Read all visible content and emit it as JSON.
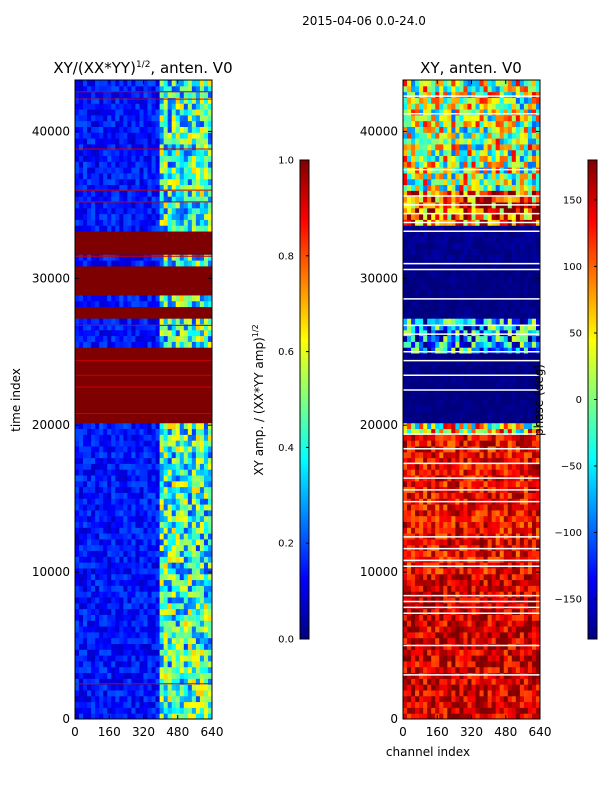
{
  "figure": {
    "suptitle": "2015-04-06 0.0-24.0"
  },
  "colors": {
    "jet": [
      "#00007f",
      "#0000ff",
      "#007fff",
      "#00ffff",
      "#7fff7f",
      "#ffff00",
      "#ff7f00",
      "#ff0000",
      "#7f0000"
    ],
    "line_white": "#ffffff",
    "line_red": "#cc0000"
  },
  "chart_data": [
    {
      "type": "heatmap",
      "title": "XY/(XX*YY)",
      "title_superscript": "1/2",
      "title_suffix": ", anten. V0",
      "xlabel": "",
      "ylabel": "time index",
      "xlim": [
        0,
        640
      ],
      "ylim": [
        0,
        43500
      ],
      "xticks": [
        0,
        160,
        320,
        480,
        640
      ],
      "yticks": [
        0,
        10000,
        20000,
        30000,
        40000
      ],
      "xtick_labels": [
        "0",
        "160",
        "320",
        "480",
        "640"
      ],
      "ytick_labels": [
        "0",
        "10000",
        "20000",
        "30000",
        "40000"
      ],
      "base_value": 0.12,
      "active_channel_band": [
        400,
        640
      ],
      "saturated_ranges": [
        [
          20000,
          25200
        ],
        [
          27200,
          28200
        ],
        [
          29000,
          31000
        ],
        [
          31800,
          33300
        ]
      ],
      "flag_lines": [
        2400,
        20800,
        22600,
        23400,
        24400,
        26800,
        31500,
        35200,
        36000,
        38800,
        42200,
        42700
      ],
      "colorbar": {
        "label": "XY amp. / (XX*YY amp)",
        "label_superscript": "1/2",
        "vmin": 0.0,
        "vmax": 1.0,
        "ticks": [
          0.0,
          0.2,
          0.4,
          0.6,
          0.8,
          1.0
        ],
        "tick_labels": [
          "0.0",
          "0.2",
          "0.4",
          "0.6",
          "0.8",
          "1.0"
        ]
      }
    },
    {
      "type": "heatmap",
      "title": "XY, anten. V0",
      "xlabel": "channel index",
      "ylabel": "",
      "xlim": [
        0,
        640
      ],
      "ylim": [
        0,
        43500
      ],
      "xticks": [
        0,
        160,
        320,
        480,
        640
      ],
      "yticks": [
        0,
        10000,
        20000,
        30000,
        40000
      ],
      "xtick_labels": [
        "0",
        "160",
        "320",
        "480",
        "640"
      ],
      "ytick_labels": [
        "0",
        "10000",
        "20000",
        "30000",
        "40000"
      ],
      "phase_regions": [
        {
          "range": [
            0,
            10000
          ],
          "value": 150
        },
        {
          "range": [
            10000,
            19500
          ],
          "value": 135
        },
        {
          "range": [
            19500,
            20000
          ],
          "value": 40
        },
        {
          "range": [
            20000,
            25000
          ],
          "value": -180
        },
        {
          "range": [
            25000,
            27200
          ],
          "value": -80
        },
        {
          "range": [
            27200,
            31000
          ],
          "value": -180
        },
        {
          "range": [
            31000,
            33500
          ],
          "value": -175
        },
        {
          "range": [
            33500,
            36000
          ],
          "value": 110
        },
        {
          "range": [
            36000,
            43500
          ],
          "value": 20
        }
      ],
      "flag_lines": [
        3000,
        5000,
        7200,
        7600,
        8000,
        8400,
        10400,
        10800,
        11600,
        12400,
        14800,
        15600,
        16400,
        17400,
        18400,
        19400,
        22400,
        23400,
        24400,
        25000,
        26200,
        26800,
        28600,
        30600,
        31000,
        33200,
        33800,
        34400,
        35000,
        35600,
        37400,
        41200,
        42400
      ],
      "colorbar": {
        "label": "phase (deg)",
        "vmin": -180,
        "vmax": 180,
        "ticks": [
          -150,
          -100,
          -50,
          0,
          50,
          100,
          150
        ],
        "tick_labels": [
          "−150",
          "−100",
          "−50",
          "0",
          "50",
          "100",
          "150"
        ]
      }
    }
  ]
}
